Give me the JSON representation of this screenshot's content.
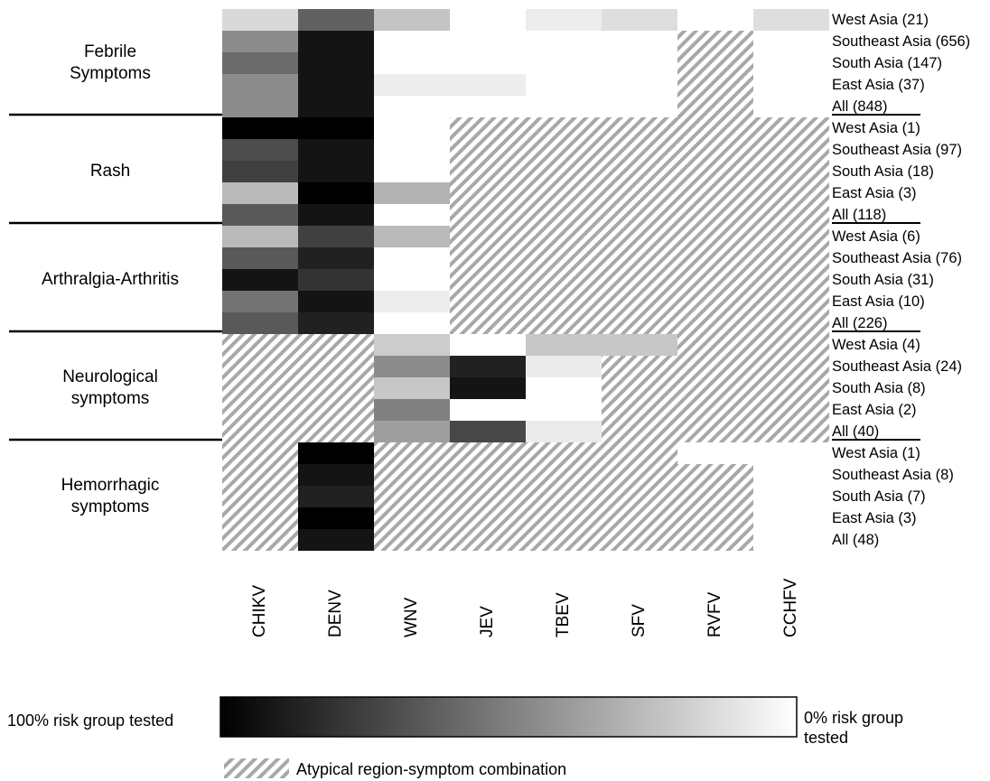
{
  "chart_data": {
    "type": "heatmap",
    "columns": [
      "CHIKV",
      "DENV",
      "WNV",
      "JEV",
      "TBEV",
      "SFV",
      "RVFV",
      "CCHFV"
    ],
    "groups": [
      {
        "name": "Febrile\nSymptoms",
        "rows": [
          "West Asia (21)",
          "Southeast Asia (656)",
          "South Asia (147)",
          "East Asia (37)",
          "All (848)"
        ],
        "values": [
          [
            0.15,
            0.62,
            0.23,
            0.0,
            0.07,
            0.13,
            0.0,
            0.13
          ],
          [
            0.45,
            0.92,
            0.0,
            0.0,
            0.0,
            0.0,
            null,
            0.0
          ],
          [
            0.58,
            0.92,
            0.0,
            0.0,
            0.0,
            0.0,
            null,
            0.0
          ],
          [
            0.45,
            0.92,
            0.07,
            0.07,
            0.0,
            0.0,
            null,
            0.0
          ],
          [
            0.45,
            0.92,
            0.0,
            0.0,
            0.0,
            0.0,
            null,
            0.0
          ]
        ]
      },
      {
        "name": "Rash",
        "rows": [
          "West Asia (1)",
          "Southeast Asia (97)",
          "South Asia (18)",
          "East Asia (3)",
          "All (118)"
        ],
        "values": [
          [
            1.0,
            1.0,
            0.0,
            null,
            null,
            null,
            null,
            null
          ],
          [
            0.7,
            0.92,
            0.0,
            null,
            null,
            null,
            null,
            null
          ],
          [
            0.75,
            0.92,
            0.0,
            null,
            null,
            null,
            null,
            null
          ],
          [
            0.27,
            1.0,
            0.3,
            null,
            null,
            null,
            null,
            null
          ],
          [
            0.65,
            0.92,
            0.0,
            null,
            null,
            null,
            null,
            null
          ]
        ]
      },
      {
        "name": "Arthralgia-Arthritis",
        "rows": [
          "West Asia (6)",
          "Southeast Asia (76)",
          "South Asia (31)",
          "East Asia (10)",
          "All (226)"
        ],
        "values": [
          [
            0.27,
            0.75,
            0.27,
            null,
            null,
            null,
            null,
            null
          ],
          [
            0.65,
            0.87,
            0.0,
            null,
            null,
            null,
            null,
            null
          ],
          [
            0.92,
            0.8,
            0.0,
            null,
            null,
            null,
            null,
            null
          ],
          [
            0.55,
            0.92,
            0.07,
            null,
            null,
            null,
            null,
            null
          ],
          [
            0.65,
            0.87,
            0.0,
            null,
            null,
            null,
            null,
            null
          ]
        ]
      },
      {
        "name": "Neurological\nsymptoms",
        "rows": [
          "West Asia (4)",
          "Southeast Asia (24)",
          "South Asia (8)",
          "East Asia (2)",
          "All (40)"
        ],
        "values": [
          [
            null,
            null,
            0.2,
            0.0,
            0.22,
            0.22,
            null,
            null
          ],
          [
            null,
            null,
            0.45,
            0.87,
            0.08,
            null,
            null,
            null
          ],
          [
            null,
            null,
            0.22,
            0.92,
            0.0,
            null,
            null,
            null
          ],
          [
            null,
            null,
            0.5,
            0.0,
            0.0,
            null,
            null,
            null
          ],
          [
            null,
            null,
            0.38,
            0.72,
            0.08,
            null,
            null,
            null
          ]
        ]
      },
      {
        "name": "Hemorrhagic\nsymptoms",
        "rows": [
          "West Asia (1)",
          "Southeast Asia (8)",
          "South Asia (7)",
          "East Asia (3)",
          "All (48)"
        ],
        "values": [
          [
            null,
            1.0,
            null,
            null,
            null,
            null,
            0.0,
            0.0
          ],
          [
            null,
            0.92,
            null,
            null,
            null,
            null,
            null,
            0.0
          ],
          [
            null,
            0.87,
            null,
            null,
            null,
            null,
            null,
            0.0
          ],
          [
            null,
            1.0,
            null,
            null,
            null,
            null,
            null,
            0.0
          ],
          [
            null,
            0.92,
            null,
            null,
            null,
            null,
            null,
            0.0
          ]
        ]
      }
    ],
    "legend": {
      "scale_left_label": "100% risk group tested",
      "scale_right_label": "0% risk group tested",
      "hatch_label": "Atypical region-symptom combination"
    }
  }
}
